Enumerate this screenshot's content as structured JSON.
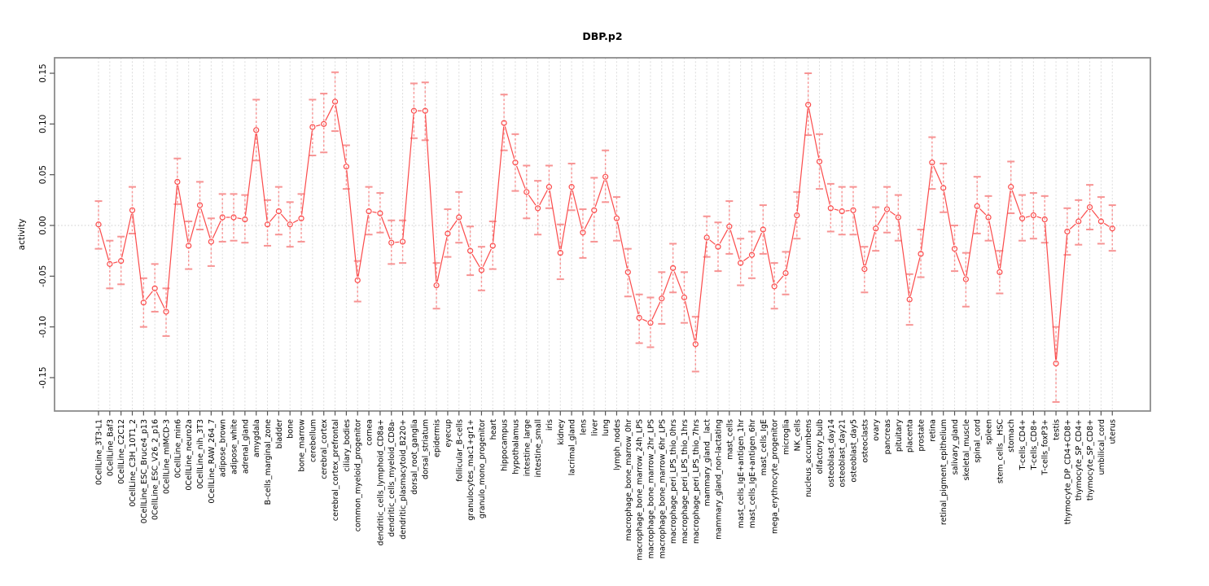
{
  "chart_data": {
    "type": "line",
    "title": "DBP.p2",
    "ylabel": "activity",
    "xlabel": "",
    "legend": "none",
    "grid": "vertical dashed gridline per category, dotted horizontal line at zero",
    "marker": "open-circle with error bars",
    "ylim": [
      -0.183,
      0.166
    ],
    "yticks": [
      0.15,
      0.1,
      0.05,
      0.0,
      -0.05,
      -0.1,
      -0.15
    ],
    "ytick_labels": [
      "0.15",
      "0.10",
      "0.05",
      "0.00",
      "-0.05",
      "-0.10",
      "-0.15"
    ],
    "colors": {
      "line": "#fb4b4b",
      "marker": "#fb4b4b",
      "error_bar": "#f79494",
      "grid": "#dcdcdc",
      "zero_line": "#cccccc",
      "box_border": "#8c8c8c",
      "tick": "#555555",
      "text": "#000000",
      "background": "#ffffff"
    },
    "categories": [
      "0CellLine_3T3-L1",
      "0CellLine_Baf3",
      "0CellLine_C2C12",
      "0CellLine_C3H_10T1_2",
      "0CellLine_ESC_Bruce4_p13",
      "0CellLine_ESC_V26_2_p16",
      "0CellLine_mIMCD-3",
      "0CellLine_min6",
      "0CellLine_neuro2a",
      "0CellLine_nih_3T3",
      "0CellLine_RAW_264_7",
      "adipose_brown",
      "adipose_white",
      "adrenal_gland",
      "amygdala",
      "B-cells_marginal_zone",
      "bladder",
      "bone",
      "bone_marrow",
      "cerebellum",
      "cerebral_cortex",
      "cerebral_cortex_prefrontal",
      "ciliary_bodies",
      "common_myeloid_progenitor",
      "cornea",
      "dendritic_cells_lymphoid_CD8a+",
      "dendritic_cells_myeloid_CD8a-",
      "dendritic_plasmacytoid_B220+",
      "dorsal_root_ganglia",
      "dorsal_striatum",
      "epidermis",
      "eyecup",
      "follicular_B-cells",
      "granulocytes_mac1+gr1+",
      "granulo_mono_progenitor",
      "heart",
      "hippocampus",
      "hypothalamus",
      "intestine_large",
      "intestine_small",
      "iris",
      "kidney",
      "lacrimal_gland",
      "lens",
      "liver",
      "lung",
      "lymph_nodes",
      "macrophage_bone_marrow_0hr",
      "macrophage_bone_marrow_24h_LPS",
      "macrophage_bone_marrow_2hr_LPS",
      "macrophage_bone_marrow_6hr_LPS",
      "macrophage_peri_LPS_thio_0hrs",
      "macrophage_peri_LPS_thio_1hrs",
      "macrophage_peri_LPS_thio_7hrs",
      "mammary_gland__lact",
      "mammary_gland_non-lactating",
      "mast_cells",
      "mast_cells_IgE+antigen_1hr",
      "mast_cells_IgE+antigen_6hr",
      "mast_cells_IgE",
      "mega_erythrocyte_progenitor",
      "microglia",
      "NK_cells",
      "nucleus_accumbens",
      "olfactory_bulb",
      "osteoblast_day14",
      "osteoblast_day21",
      "osteoblast_day5",
      "osteoclasts",
      "ovary",
      "pancreas",
      "pituitary",
      "placenta",
      "prostate",
      "retina",
      "retinal_pigment_epithelium",
      "salivary_gland",
      "skeletal_muscle",
      "spinal_cord",
      "spleen",
      "stem_cells__HSC",
      "stomach",
      "T-cells_CD4+",
      "T-cells_CD8+",
      "T-cells_foxP3+",
      "testis",
      "thymocyte_DP_CD4+CD8+",
      "thymocyte_SP_CD4+",
      "thymocyte_SP_CD8+",
      "umbilical_cord",
      "uterus"
    ],
    "series": [
      {
        "name": "activity",
        "values": [
          0.001,
          -0.038,
          -0.035,
          0.015,
          -0.076,
          -0.062,
          -0.085,
          0.043,
          -0.02,
          0.02,
          -0.016,
          0.008,
          0.008,
          0.006,
          0.094,
          0.001,
          0.014,
          0.001,
          0.007,
          0.097,
          0.1,
          0.122,
          0.058,
          -0.054,
          0.014,
          0.012,
          -0.017,
          -0.016,
          0.113,
          0.113,
          -0.059,
          -0.008,
          0.008,
          -0.025,
          -0.044,
          -0.02,
          0.101,
          0.062,
          0.033,
          0.017,
          0.038,
          -0.027,
          0.038,
          -0.007,
          0.015,
          0.048,
          0.007,
          -0.046,
          -0.091,
          -0.096,
          -0.072,
          -0.042,
          -0.071,
          -0.117,
          -0.012,
          -0.021,
          -0.001,
          -0.037,
          -0.029,
          -0.004,
          -0.06,
          -0.047,
          0.01,
          0.119,
          0.063,
          0.017,
          0.014,
          0.015,
          -0.043,
          -0.003,
          0.016,
          0.008,
          -0.073,
          -0.028,
          0.062,
          0.037,
          -0.023,
          -0.053,
          0.019,
          0.008,
          -0.046,
          0.038,
          0.007,
          0.01,
          0.006,
          -0.136,
          -0.006,
          0.004,
          0.018,
          0.004,
          -0.003
        ],
        "err_hi": [
          0.024,
          -0.015,
          -0.011,
          0.038,
          -0.052,
          -0.038,
          -0.062,
          0.066,
          0.004,
          0.043,
          0.007,
          0.031,
          0.031,
          0.03,
          0.124,
          0.025,
          0.038,
          0.023,
          0.031,
          0.124,
          0.13,
          0.151,
          0.079,
          -0.035,
          0.038,
          0.032,
          0.005,
          0.005,
          0.14,
          0.141,
          -0.037,
          0.016,
          0.033,
          -0.001,
          -0.021,
          0.004,
          0.129,
          0.09,
          0.059,
          0.044,
          0.059,
          0.001,
          0.061,
          0.016,
          0.047,
          0.074,
          0.028,
          -0.023,
          -0.068,
          -0.071,
          -0.046,
          -0.018,
          -0.046,
          -0.09,
          0.009,
          0.003,
          0.024,
          -0.013,
          -0.006,
          0.02,
          -0.037,
          -0.026,
          0.033,
          0.15,
          0.09,
          0.041,
          0.038,
          0.038,
          -0.021,
          0.018,
          0.038,
          0.03,
          -0.048,
          -0.004,
          0.087,
          0.061,
          0.0,
          -0.027,
          0.048,
          0.029,
          -0.025,
          0.063,
          0.03,
          0.032,
          0.029,
          -0.1,
          0.017,
          0.025,
          0.04,
          0.028,
          0.02
        ],
        "err_lo": [
          -0.023,
          -0.062,
          -0.058,
          -0.008,
          -0.1,
          -0.085,
          -0.109,
          0.021,
          -0.043,
          -0.004,
          -0.04,
          -0.016,
          -0.015,
          -0.017,
          0.064,
          -0.02,
          -0.009,
          -0.021,
          -0.016,
          0.069,
          0.072,
          0.093,
          0.036,
          -0.075,
          -0.009,
          -0.007,
          -0.038,
          -0.037,
          0.086,
          0.084,
          -0.082,
          -0.031,
          -0.017,
          -0.049,
          -0.064,
          -0.043,
          0.074,
          0.034,
          0.007,
          -0.009,
          0.017,
          -0.053,
          0.015,
          -0.032,
          -0.016,
          0.023,
          -0.015,
          -0.07,
          -0.116,
          -0.12,
          -0.097,
          -0.066,
          -0.096,
          -0.144,
          -0.031,
          -0.045,
          -0.028,
          -0.059,
          -0.052,
          -0.028,
          -0.082,
          -0.068,
          -0.013,
          0.089,
          0.036,
          -0.006,
          -0.009,
          -0.009,
          -0.066,
          -0.025,
          -0.007,
          -0.015,
          -0.098,
          -0.051,
          0.036,
          0.013,
          -0.045,
          -0.08,
          -0.008,
          -0.015,
          -0.067,
          0.012,
          -0.015,
          -0.013,
          -0.017,
          -0.174,
          -0.029,
          -0.019,
          -0.004,
          -0.018,
          -0.025
        ]
      }
    ]
  }
}
